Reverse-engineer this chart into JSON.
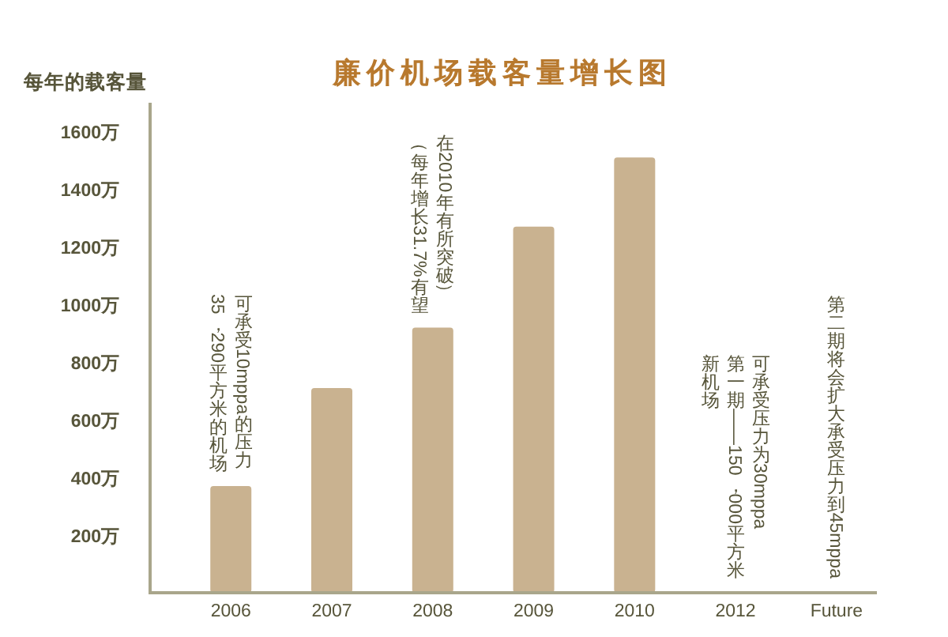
{
  "chart_data": {
    "type": "bar",
    "title": "廉价机场载客量增长图",
    "ylabel": "每年的载客量",
    "categories": [
      "2006",
      "2007",
      "2008",
      "2009",
      "2010",
      "2012",
      "Future"
    ],
    "values": [
      370,
      710,
      920,
      1270,
      1510,
      null,
      null
    ],
    "color": "#c9b290",
    "ylim": [
      0,
      1700
    ],
    "yticks": [
      {
        "value": 200,
        "label": "200万"
      },
      {
        "value": 400,
        "label": "400万"
      },
      {
        "value": 600,
        "label": "600万"
      },
      {
        "value": 800,
        "label": "800万"
      },
      {
        "value": 1000,
        "label": "1000万"
      },
      {
        "value": 1200,
        "label": "1200万"
      },
      {
        "value": 1400,
        "label": "1400万"
      },
      {
        "value": 1600,
        "label": "1600万"
      }
    ],
    "annotations": [
      {
        "text": "35，290平方米的机场",
        "x": "2006",
        "y": 370
      },
      {
        "text": "可承受10mppa的压力",
        "x": "2006",
        "y": 370
      },
      {
        "text": "（每年增长31.7%有望",
        "x": "2008",
        "y": 920
      },
      {
        "text": "在2010年有所突破）",
        "x": "2008",
        "y": 920
      },
      "新机场",
      "第一期——150，000平方米",
      "可承受压力为30mppa",
      "第二期将会扩大承受压力到45mppa"
    ]
  }
}
